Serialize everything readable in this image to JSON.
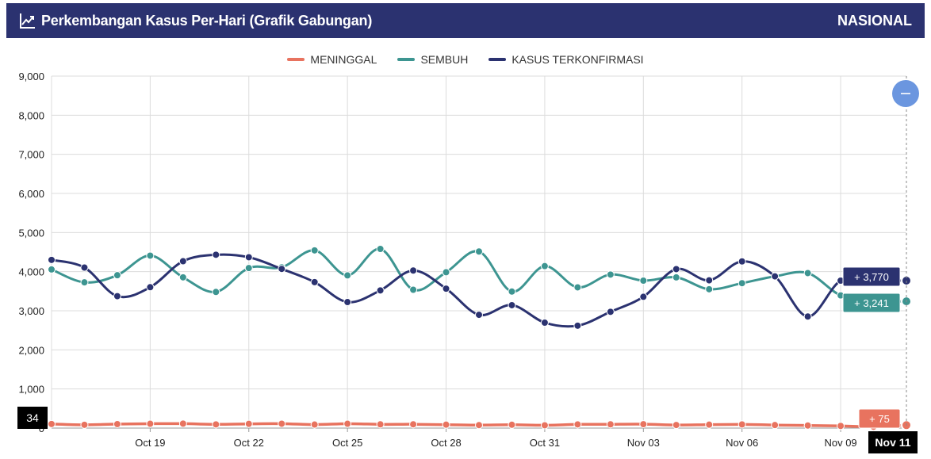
{
  "header": {
    "title": "Perkembangan Kasus Per-Hari (Grafik Gabungan)",
    "title_icon": "line-chart-icon",
    "region": "NASIONAL"
  },
  "chart_data": {
    "type": "line",
    "title": "Perkembangan Kasus Per-Hari (Grafik Gabungan)",
    "xlabel": "",
    "ylabel": "",
    "ylim": [
      0,
      9000
    ],
    "yticks": [
      "0",
      "1,000",
      "2,000",
      "3,000",
      "4,000",
      "5,000",
      "6,000",
      "7,000",
      "8,000",
      "9,000"
    ],
    "x": [
      "Oct 16",
      "Oct 17",
      "Oct 18",
      "Oct 19",
      "Oct 20",
      "Oct 21",
      "Oct 22",
      "Oct 23",
      "Oct 24",
      "Oct 25",
      "Oct 26",
      "Oct 27",
      "Oct 28",
      "Oct 29",
      "Oct 30",
      "Oct 31",
      "Nov 01",
      "Nov 02",
      "Nov 03",
      "Nov 04",
      "Nov 05",
      "Nov 06",
      "Nov 07",
      "Nov 08",
      "Nov 09",
      "Nov 10",
      "Nov 11"
    ],
    "xticks": [
      "Oct 19",
      "Oct 22",
      "Oct 25",
      "Oct 28",
      "Oct 31",
      "Nov 03",
      "Nov 06",
      "Nov 09"
    ],
    "grid": true,
    "legend_position": "top-center",
    "series": [
      {
        "name": "MENINGGAL",
        "color": "#e8735f",
        "values": [
          105,
          84,
          102,
          111,
          114,
          95,
          108,
          112,
          90,
          111,
          96,
          97,
          88,
          77,
          85,
          72,
          95,
          96,
          100,
          79,
          88,
          94,
          78,
          66,
          56,
          34,
          75
        ]
      },
      {
        "name": "SEMBUH",
        "color": "#3d9591",
        "values": [
          4056,
          3726,
          3909,
          4410,
          3855,
          3481,
          4092,
          4111,
          4544,
          3904,
          4581,
          3537,
          3985,
          4515,
          3491,
          4142,
          3599,
          3926,
          3770,
          3853,
          3551,
          3705,
          3880,
          3964,
          3392,
          3241,
          3241
        ]
      },
      {
        "name": "KASUS TERKONFIRMASI",
        "color": "#2b3270",
        "values": [
          4301,
          4105,
          3373,
          3602,
          4267,
          4432,
          4369,
          4070,
          3732,
          3222,
          3520,
          4029,
          3565,
          2897,
          3143,
          2696,
          2618,
          2973,
          3356,
          4065,
          3779,
          4262,
          3880,
          2853,
          3770,
          3770,
          3770
        ]
      }
    ],
    "tooltip": {
      "date": "Nov 11",
      "values": [
        "+ 3,770",
        "+ 3,241",
        "+ 75"
      ],
      "range_badge": "34"
    }
  },
  "controls": {
    "zoom_reset_icon": "minus-icon"
  }
}
